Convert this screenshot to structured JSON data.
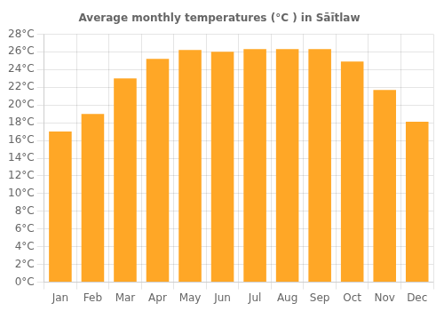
{
  "chart_data": {
    "type": "bar",
    "title": "Average monthly temperatures (°C ) in Sāītlaw",
    "categories": [
      "Jan",
      "Feb",
      "Mar",
      "Apr",
      "May",
      "Jun",
      "Jul",
      "Aug",
      "Sep",
      "Oct",
      "Nov",
      "Dec"
    ],
    "values": [
      17.0,
      19.0,
      23.0,
      25.2,
      26.2,
      26.0,
      26.3,
      26.3,
      26.3,
      24.9,
      21.7,
      18.1
    ],
    "color": "#FFA726",
    "ylim": [
      0,
      28
    ],
    "yticks": [
      {
        "value": 0,
        "label": "0°C"
      },
      {
        "value": 2,
        "label": "2°C"
      },
      {
        "value": 4,
        "label": "4°C"
      },
      {
        "value": 6,
        "label": "6°C"
      },
      {
        "value": 8,
        "label": "8°C"
      },
      {
        "value": 10,
        "label": "10°C"
      },
      {
        "value": 12,
        "label": "12°C"
      },
      {
        "value": 14,
        "label": "14°C"
      },
      {
        "value": 16,
        "label": "16°C"
      },
      {
        "value": 18,
        "label": "18°C"
      },
      {
        "value": 20,
        "label": "20°C"
      },
      {
        "value": 22,
        "label": "22°C"
      },
      {
        "value": 24,
        "label": "24°C"
      },
      {
        "value": 26,
        "label": "26°C"
      },
      {
        "value": 28,
        "label": "28°C"
      }
    ],
    "grid": true
  }
}
